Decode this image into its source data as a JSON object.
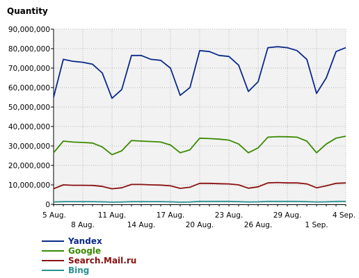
{
  "chart_data": {
    "type": "line",
    "title": "",
    "ylabel": "Quantity",
    "xlabel": "",
    "ylim": [
      0,
      90000000
    ],
    "yticks": [
      "0",
      "10,000,000",
      "20,000,000",
      "30,000,000",
      "40,000,000",
      "50,000,000",
      "60,000,000",
      "70,000,000",
      "80,000,000",
      "90,000,000"
    ],
    "ytick_values": [
      0,
      10000000,
      20000000,
      30000000,
      40000000,
      50000000,
      60000000,
      70000000,
      80000000,
      90000000
    ],
    "x": [
      "2013-08-05",
      "2013-08-06",
      "2013-08-07",
      "2013-08-08",
      "2013-08-09",
      "2013-08-10",
      "2013-08-11",
      "2013-08-12",
      "2013-08-13",
      "2013-08-14",
      "2013-08-15",
      "2013-08-16",
      "2013-08-17",
      "2013-08-18",
      "2013-08-19",
      "2013-08-20",
      "2013-08-21",
      "2013-08-22",
      "2013-08-23",
      "2013-08-24",
      "2013-08-25",
      "2013-08-26",
      "2013-08-27",
      "2013-08-28",
      "2013-08-29",
      "2013-08-30",
      "2013-08-31",
      "2013-09-01",
      "2013-09-02",
      "2013-09-03",
      "2013-09-04"
    ],
    "xticks_top": [
      "5 Aug.",
      "11 Aug.",
      "17 Aug.",
      "23 Aug.",
      "29 Aug.",
      "4 Sep."
    ],
    "xticks_top_index": [
      0,
      6,
      12,
      18,
      24,
      30
    ],
    "xticks_bottom": [
      "8 Aug.",
      "14 Aug.",
      "20 Aug.",
      "26 Aug.",
      "1 Sep."
    ],
    "xticks_bottom_index": [
      3,
      9,
      15,
      21,
      27
    ],
    "grid": true,
    "legend_position": "bottom-left",
    "series": [
      {
        "name": "Yandex",
        "color": "#0a2a8a",
        "values": [
          55000000,
          74500000,
          73500000,
          73000000,
          72000000,
          67500000,
          54500000,
          59000000,
          76500000,
          76500000,
          74500000,
          74000000,
          70000000,
          56000000,
          60000000,
          79000000,
          78500000,
          76500000,
          76000000,
          71500000,
          58000000,
          63000000,
          80500000,
          81000000,
          80500000,
          79000000,
          74500000,
          57000000,
          65000000,
          78500000,
          80500000
        ]
      },
      {
        "name": "Google",
        "color": "#3a8a00",
        "values": [
          26500000,
          32500000,
          32000000,
          31800000,
          31500000,
          29500000,
          25500000,
          27500000,
          32800000,
          32500000,
          32300000,
          32000000,
          30500000,
          26500000,
          28000000,
          34000000,
          33800000,
          33500000,
          33000000,
          31000000,
          26500000,
          29000000,
          34500000,
          34800000,
          34700000,
          34500000,
          32500000,
          26500000,
          31000000,
          34000000,
          35000000
        ]
      },
      {
        "name": "Search.Mail.ru",
        "color": "#8a1010",
        "values": [
          8000000,
          10000000,
          9800000,
          9800000,
          9700000,
          9200000,
          8000000,
          8500000,
          10200000,
          10200000,
          10000000,
          9900000,
          9500000,
          8200000,
          8800000,
          10800000,
          10800000,
          10600000,
          10500000,
          10000000,
          8300000,
          9000000,
          11000000,
          11200000,
          11000000,
          11000000,
          10500000,
          8500000,
          9500000,
          10800000,
          11000000
        ]
      },
      {
        "name": "Bing",
        "color": "#2a9090",
        "values": [
          1200000,
          1400000,
          1400000,
          1400000,
          1400000,
          1300000,
          1100000,
          1200000,
          1400000,
          1400000,
          1400000,
          1400000,
          1300000,
          1100000,
          1200000,
          1500000,
          1500000,
          1500000,
          1500000,
          1400000,
          1200000,
          1300000,
          1500000,
          1500000,
          1500000,
          1500000,
          1400000,
          1200000,
          1300000,
          1500000,
          1500000
        ]
      }
    ]
  }
}
